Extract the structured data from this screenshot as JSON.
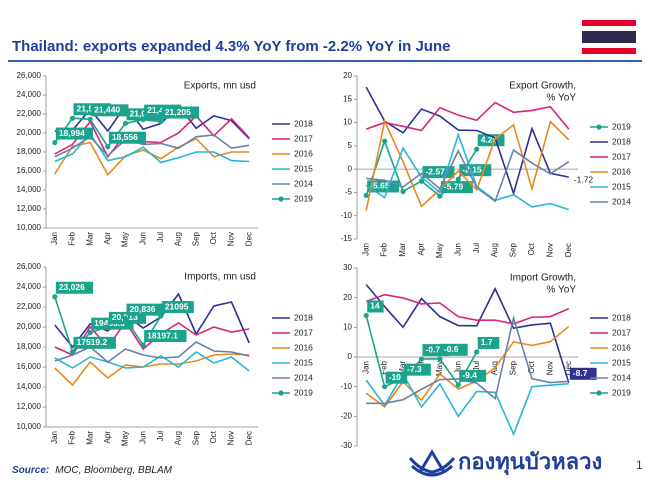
{
  "header": {
    "title": "Thailand: exports expanded 4.3% YoY from -2.2% YoY in June"
  },
  "chart_data": [
    {
      "type": "line",
      "title": [
        "Exports, mn usd"
      ],
      "categories": [
        "Jan",
        "Feb",
        "Mar",
        "Apr",
        "May",
        "Jun",
        "Jul",
        "Aug",
        "Sep",
        "Oct",
        "Nov",
        "Dec"
      ],
      "ylim": [
        10000,
        26000
      ],
      "yticks": [
        {
          "value": 10000,
          "label": "10,000"
        },
        {
          "value": 12000,
          "label": "12,000"
        },
        {
          "value": 14000,
          "label": "14,000"
        },
        {
          "value": 16000,
          "label": "16,000"
        },
        {
          "value": 18000,
          "label": "18,000"
        },
        {
          "value": 20000,
          "label": "20,000"
        },
        {
          "value": 22000,
          "label": "22,000"
        },
        {
          "value": 24000,
          "label": "24,000"
        },
        {
          "value": 26000,
          "label": "26,000"
        }
      ],
      "series": [
        {
          "name": "2018",
          "color": "#2e3192",
          "values": [
            20200,
            20300,
            22500,
            20200,
            22900,
            20400,
            21000,
            22900,
            20500,
            21800,
            21300,
            19400
          ]
        },
        {
          "name": "2017",
          "color": "#d6257a",
          "values": [
            17800,
            18800,
            21200,
            17500,
            19900,
            19100,
            19000,
            20000,
            21800,
            19700,
            21500,
            19500
          ]
        },
        {
          "name": "2016",
          "color": "#e8891e",
          "values": [
            15700,
            18600,
            19000,
            15600,
            17600,
            18200,
            17300,
            18500,
            19400,
            17500,
            18000,
            18000
          ]
        },
        {
          "name": "2015",
          "color": "#29b6d6",
          "values": [
            17000,
            17800,
            19900,
            17100,
            17500,
            18500,
            16900,
            17400,
            18000,
            18000,
            17100,
            17000
          ]
        },
        {
          "name": "2014",
          "color": "#6b82a8",
          "values": [
            17500,
            18400,
            19600,
            17600,
            19300,
            18800,
            18900,
            18400,
            19600,
            19800,
            18400,
            18700
          ]
        },
        {
          "name": "2019",
          "color": "#1ba38c",
          "markers": true,
          "boxed_labels": true,
          "values": [
            18994,
            21554,
            21440,
            18556,
            21018,
            21409,
            21205,
            null,
            null,
            null,
            null,
            null
          ],
          "value_labels": [
            "18,994",
            "21,554",
            "21,440",
            "18,556",
            "21,018",
            "21,409",
            "21,205",
            null,
            null,
            null,
            null,
            null
          ]
        }
      ]
    },
    {
      "type": "line",
      "title": [
        "Export Growth,",
        "% YoY"
      ],
      "categories": [
        "Jan",
        "Feb",
        "Mar",
        "Apr",
        "May",
        "Jun",
        "Jul",
        "Aug",
        "Sep",
        "Oct",
        "Nov",
        "Dec"
      ],
      "ylim": [
        -15,
        20
      ],
      "yticks": [
        -15,
        -10,
        -5,
        0,
        5,
        10,
        15,
        20
      ],
      "series": [
        {
          "name": "2019",
          "color": "#1ba38c",
          "markers": true,
          "boxed_labels": true,
          "values": [
            -5.65,
            6,
            -4.8,
            -2.57,
            -5.79,
            -2.15,
            4.28,
            null,
            null,
            null,
            null,
            null
          ],
          "value_labels": [
            "-5.65",
            null,
            null,
            "-2.57",
            "-5.79",
            "-2.15",
            "4.28",
            null,
            null,
            null,
            null,
            null
          ]
        },
        {
          "name": "2018",
          "color": "#2e3192",
          "values": [
            17.6,
            10.3,
            7.8,
            12.9,
            11.4,
            8.4,
            8.3,
            6.7,
            -5.2,
            8.7,
            -0.9,
            -1.72
          ],
          "value_labels": [
            null,
            null,
            null,
            null,
            null,
            null,
            null,
            null,
            null,
            null,
            null,
            "-1.72"
          ]
        },
        {
          "name": "2017",
          "color": "#d6257a",
          "values": [
            8.6,
            10,
            9.2,
            8.3,
            13.2,
            11.6,
            10.5,
            14.3,
            12.2,
            12.6,
            13.4,
            8.6
          ]
        },
        {
          "name": "2016",
          "color": "#e8891e",
          "values": [
            -8.9,
            10.3,
            1.6,
            -8,
            -4.4,
            -0.4,
            -4.4,
            6.5,
            9.5,
            -4.2,
            10.2,
            6.3
          ]
        },
        {
          "name": "2015",
          "color": "#29b6d6",
          "values": [
            -3.5,
            -6.1,
            4.5,
            -1.7,
            -5,
            7.4,
            -3.7,
            -6.7,
            -5.5,
            -8.1,
            -7.4,
            -8.7
          ]
        },
        {
          "name": "2014",
          "color": "#6b82a8",
          "values": [
            -2,
            -2.4,
            -3.8,
            -0.9,
            -4.2,
            3.9,
            -4,
            -6.9,
            4.1,
            1.3,
            -1,
            1.6
          ]
        }
      ]
    },
    {
      "type": "line",
      "title": [
        "Imports, mn usd"
      ],
      "categories": [
        "Jan",
        "Feb",
        "Mar",
        "Apr",
        "May",
        "Jun",
        "Jul",
        "Aug",
        "Sep",
        "Oct",
        "Nov",
        "Dec"
      ],
      "ylim": [
        10000,
        26000
      ],
      "yticks": [
        {
          "value": 10000,
          "label": "10,000"
        },
        {
          "value": 12000,
          "label": "12,000"
        },
        {
          "value": 14000,
          "label": "14,000"
        },
        {
          "value": 16000,
          "label": "16,000"
        },
        {
          "value": 18000,
          "label": "18,000"
        },
        {
          "value": 20000,
          "label": "20,000"
        },
        {
          "value": 22000,
          "label": "22,000"
        },
        {
          "value": 24000,
          "label": "24,000"
        },
        {
          "value": 26000,
          "label": "26,000"
        }
      ],
      "series": [
        {
          "name": "2018",
          "color": "#2e3192",
          "values": [
            20200,
            18000,
            20300,
            19600,
            21200,
            19900,
            21000,
            23300,
            19300,
            22100,
            22500,
            18400
          ]
        },
        {
          "name": "2017",
          "color": "#d6257a",
          "values": [
            18000,
            17200,
            20000,
            18000,
            20500,
            17800,
            19300,
            20400,
            19200,
            20000,
            19500,
            19800
          ]
        },
        {
          "name": "2016",
          "color": "#e8891e",
          "values": [
            15900,
            14200,
            16500,
            14900,
            16200,
            16000,
            16300,
            16300,
            16600,
            17200,
            17300,
            17200
          ]
        },
        {
          "name": "2015",
          "color": "#29b6d6",
          "values": [
            16900,
            15900,
            17000,
            16500,
            15900,
            16000,
            17100,
            16000,
            17500,
            16400,
            17000,
            15600
          ]
        },
        {
          "name": "2014",
          "color": "#6b82a8",
          "values": [
            16600,
            17200,
            18000,
            16500,
            17800,
            17200,
            16900,
            17000,
            18500,
            17600,
            17500,
            17100
          ]
        },
        {
          "name": "2019",
          "color": "#1ba38c",
          "markers": true,
          "boxed_labels": true,
          "values": [
            23026,
            17519.2,
            19435.5,
            20013,
            20836,
            18197.1,
            21095,
            null,
            null,
            null,
            null,
            null
          ],
          "value_labels": [
            "23,026",
            "17519.2",
            "19435.5",
            "20,013",
            "20,836",
            "18197.1",
            "21095",
            null,
            null,
            null,
            null,
            null
          ]
        }
      ]
    },
    {
      "type": "line",
      "title": [
        "Import Growth,",
        "% YoY"
      ],
      "x_labels_at_zero": true,
      "categories": [
        "Jan",
        "Feb",
        "Mar",
        "Apr",
        "May",
        "Jun",
        "Jul",
        "Aug",
        "Sep",
        "Oct",
        "Nov",
        "Dec"
      ],
      "ylim": [
        -30,
        30
      ],
      "yticks": [
        -30,
        -20,
        -10,
        0,
        10,
        20,
        30
      ],
      "series": [
        {
          "name": "2018",
          "color": "#2e3192",
          "boxed_labels": true,
          "values": [
            24.4,
            17,
            10,
            19.7,
            13.6,
            10.6,
            10.5,
            23,
            9.7,
            10.8,
            11.4,
            -8.7
          ],
          "value_labels": [
            null,
            null,
            null,
            null,
            null,
            null,
            null,
            null,
            null,
            null,
            null,
            "-8.7"
          ]
        },
        {
          "name": "2017",
          "color": "#d6257a",
          "values": [
            18.7,
            21,
            19.9,
            17.9,
            18.2,
            13.6,
            12.4,
            12.4,
            11.2,
            13.4,
            13.6,
            16.3
          ]
        },
        {
          "name": "2016",
          "color": "#e8891e",
          "values": [
            -12.2,
            -16.8,
            -8.3,
            -14.6,
            -5.7,
            -10.8,
            -8.1,
            -3.6,
            5.1,
            3.9,
            5.2,
            10.3
          ]
        },
        {
          "name": "2015",
          "color": "#29b6d6",
          "values": [
            -7.8,
            -16.3,
            -5.8,
            -16.8,
            -9.1,
            -20,
            -11.6,
            -11.9,
            -26,
            -10,
            -9.5,
            -9
          ]
        },
        {
          "name": "2014",
          "color": "#6b82a8",
          "values": [
            -15.6,
            -15.6,
            -14.4,
            -10.9,
            -7.6,
            -7.4,
            -8.8,
            -14,
            13.1,
            -7.3,
            -8.6,
            -8.2
          ]
        },
        {
          "name": "2019",
          "color": "#1ba38c",
          "markers": true,
          "boxed_labels": true,
          "values": [
            14,
            -10,
            -7.3,
            -0.7,
            -0.6,
            -9.4,
            1.7,
            null,
            null,
            null,
            null,
            null
          ]
        }
      ]
    }
  ],
  "footer": {
    "source_label": "Source:",
    "source": "MOC, Bloomberg, BBLAM",
    "logo": "กองทุนบัวหลวง",
    "page": "1"
  }
}
